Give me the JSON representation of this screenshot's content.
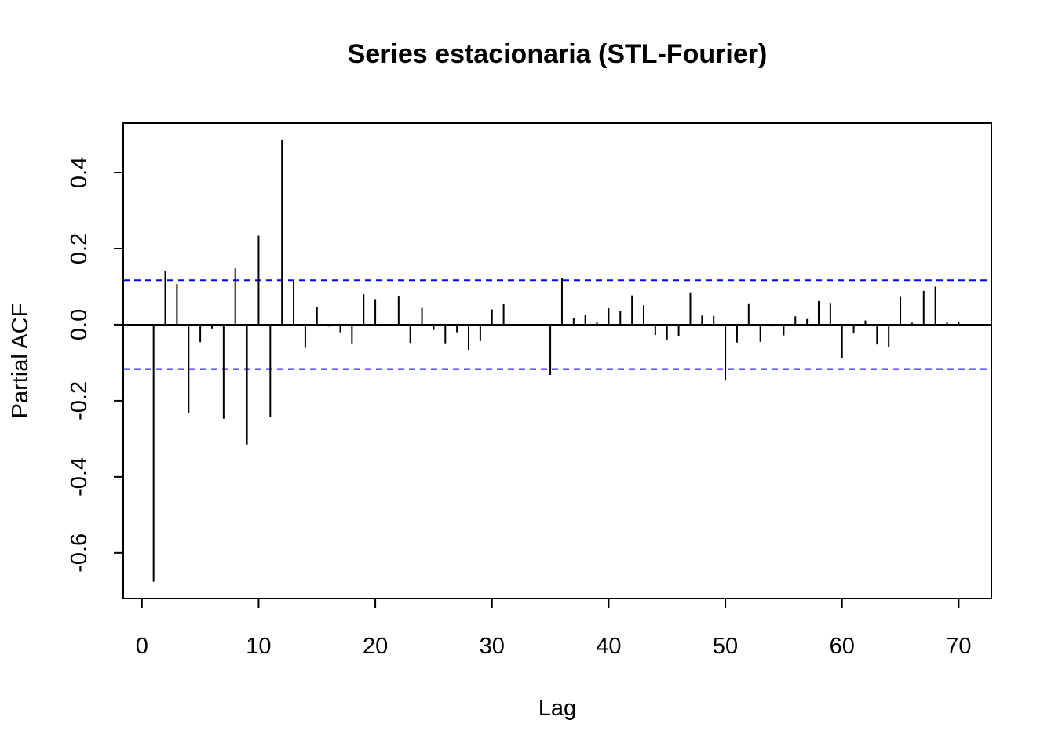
{
  "chart_data": {
    "type": "bar",
    "subtype": "pacf",
    "title": "Series estacionaria (STL-Fourier)",
    "xlabel": "Lag",
    "ylabel": "Partial ACF",
    "xlim": [
      -1.6,
      72.8
    ],
    "ylim": [
      -0.72,
      0.53
    ],
    "xticks": [
      0,
      10,
      20,
      30,
      40,
      50,
      60,
      70
    ],
    "xtick_labels": [
      "0",
      "10",
      "20",
      "30",
      "40",
      "50",
      "60",
      "70"
    ],
    "yticks": [
      -0.6,
      -0.4,
      -0.2,
      0.0,
      0.2,
      0.4
    ],
    "ytick_labels": [
      "-0.6",
      "-0.4",
      "-0.2",
      "0.0",
      "0.2",
      "0.4"
    ],
    "confidence_bound": 0.117,
    "grid": false,
    "colors": {
      "bars": "#000000",
      "confidence": "#0000ff",
      "zero_line": "#000000"
    },
    "x": [
      1,
      2,
      3,
      4,
      5,
      6,
      7,
      8,
      9,
      10,
      11,
      12,
      13,
      14,
      15,
      16,
      17,
      18,
      19,
      20,
      21,
      22,
      23,
      24,
      25,
      26,
      27,
      28,
      29,
      30,
      31,
      32,
      33,
      34,
      35,
      36,
      37,
      38,
      39,
      40,
      41,
      42,
      43,
      44,
      45,
      46,
      47,
      48,
      49,
      50,
      51,
      52,
      53,
      54,
      55,
      56,
      57,
      58,
      59,
      60,
      61,
      62,
      63,
      64,
      65,
      66,
      67,
      68,
      69,
      70
    ],
    "values": [
      -0.676,
      0.142,
      0.107,
      -0.231,
      -0.046,
      -0.01,
      -0.247,
      0.148,
      -0.315,
      0.234,
      -0.243,
      0.487,
      0.117,
      -0.061,
      0.046,
      -0.005,
      -0.02,
      -0.049,
      0.08,
      0.067,
      0.0,
      0.074,
      -0.048,
      0.044,
      -0.014,
      -0.049,
      -0.02,
      -0.066,
      -0.043,
      0.04,
      0.055,
      0.002,
      0.0,
      -0.004,
      -0.132,
      0.123,
      0.017,
      0.026,
      0.007,
      0.043,
      0.036,
      0.077,
      0.051,
      -0.027,
      -0.039,
      -0.031,
      0.085,
      0.024,
      0.023,
      -0.147,
      -0.047,
      0.056,
      -0.045,
      -0.005,
      -0.028,
      0.022,
      0.015,
      0.062,
      0.057,
      -0.088,
      -0.023,
      0.011,
      -0.052,
      -0.058,
      0.073,
      0.005,
      0.089,
      0.1,
      0.006,
      0.007
    ]
  }
}
